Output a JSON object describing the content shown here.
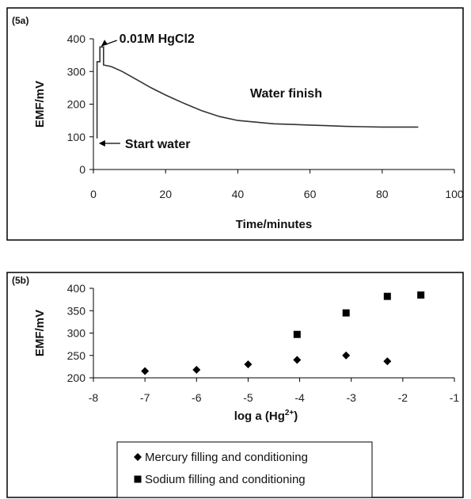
{
  "chart_data": [
    {
      "type": "line",
      "panel_label": "(5a)",
      "xlabel": "Time/minutes",
      "ylabel": "EMF/mV",
      "xlim": [
        0,
        100
      ],
      "ylim": [
        0,
        400
      ],
      "xticks": [
        0,
        20,
        40,
        60,
        80,
        100
      ],
      "yticks": [
        0,
        100,
        200,
        300,
        400
      ],
      "grid": false,
      "series": [
        {
          "x": [
            1,
            1,
            1.8,
            1.8,
            2.8,
            2.8,
            5,
            8,
            12,
            16,
            20,
            25,
            30,
            35,
            40,
            45,
            50,
            55,
            60,
            65,
            70,
            75,
            80,
            85,
            90
          ],
          "y": [
            95,
            330,
            330,
            375,
            375,
            320,
            315,
            300,
            275,
            250,
            228,
            203,
            180,
            162,
            150,
            145,
            140,
            138,
            136,
            134,
            132,
            131,
            130,
            130,
            130
          ]
        }
      ],
      "annotations": [
        {
          "text": "0.01M HgCl2",
          "x": 3,
          "y": 400
        },
        {
          "text": "Water finish",
          "x": 50,
          "y": 230
        },
        {
          "text": "Start water",
          "x": 14,
          "y": 80
        }
      ]
    },
    {
      "type": "scatter",
      "panel_label": "(5b)",
      "xlabel": "log a (Hg",
      "xlabel_sup": "2+",
      "xlabel_end": ")",
      "ylabel": "EMF/mV",
      "xlim": [
        -8,
        -1
      ],
      "ylim": [
        200,
        400
      ],
      "xticks": [
        -8,
        -7,
        -6,
        -5,
        -4,
        -3,
        -2,
        -1
      ],
      "yticks": [
        200,
        250,
        300,
        350,
        400
      ],
      "grid": false,
      "legend_position": "bottom",
      "series": [
        {
          "name": "Mercury filling and conditioning",
          "marker": "diamond",
          "x": [
            -7,
            -6,
            -5,
            -4.05,
            -3.1,
            -2.3
          ],
          "y": [
            215,
            218,
            230,
            240,
            250,
            237
          ]
        },
        {
          "name": "Sodium filling and conditioning",
          "marker": "square",
          "x": [
            -4.05,
            -3.1,
            -2.3,
            -1.65
          ],
          "y": [
            297,
            345,
            382,
            385
          ]
        }
      ]
    }
  ]
}
